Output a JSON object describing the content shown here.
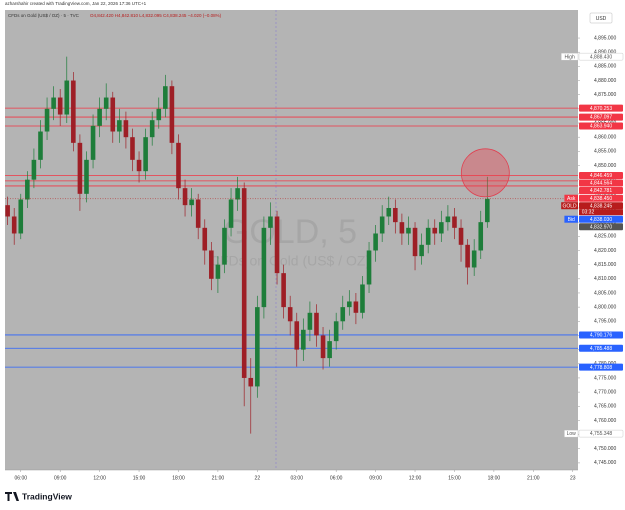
{
  "header": {
    "credit": "azharshahir created with TradingView.com, Jan 22, 2026 17:36 UTC+1",
    "symbol": "CFDs on Gold (US$ / OZ) · 5 · TVC",
    "ohlc": "O4,842.420 H4,842.810 L4,832.095 C4,838.245 −4.020 (−0.08%)",
    "currency": "USD",
    "watermark": "GOLD, 5",
    "watermark_sub": "CFDs on Gold (US$ / OZ)",
    "logo": "TradingView"
  },
  "chart_data": {
    "type": "candlestick",
    "grid": false,
    "up_color": "#1e7d3a",
    "down_color": "#9e1f26",
    "x": [
      5,
      5.5,
      6,
      6.5,
      7,
      7.5,
      8,
      8.5,
      9,
      9.5,
      10,
      10.5,
      11,
      11.5,
      12,
      12.5,
      13,
      13.5,
      14,
      14.5,
      15,
      15.5,
      16,
      16.5,
      17,
      17.5,
      18,
      18.5,
      19,
      19.5,
      20,
      20.5,
      21,
      21.5,
      22,
      22.5,
      23,
      23.5,
      24,
      24.5,
      25,
      25.5,
      26,
      26.5,
      27,
      27.5,
      28,
      28.5,
      29,
      29.5,
      30,
      30.5,
      31,
      31.5,
      32,
      32.5,
      33,
      33.5,
      34,
      34.5,
      35,
      35.5,
      36,
      36.5,
      37,
      37.5,
      38,
      38.5,
      39,
      39.5,
      40,
      40.5,
      41,
      41.5
    ],
    "open": [
      4836,
      4832,
      4826,
      4838,
      4845,
      4852,
      4862,
      4870,
      4874,
      4868,
      4880,
      4858,
      4840,
      4852,
      4864,
      4870,
      4874,
      4862,
      4866,
      4860,
      4852,
      4848,
      4860,
      4866,
      4870,
      4878,
      4858,
      4842,
      4836,
      4838,
      4828,
      4820,
      4810,
      4815,
      4828,
      4838,
      4842,
      4775,
      4772,
      4800,
      4828,
      4832,
      4812,
      4800,
      4795,
      4785,
      4792,
      4798,
      4790,
      4782,
      4788,
      4795,
      4800,
      4802,
      4798,
      4808,
      4820,
      4826,
      4832,
      4835,
      4830,
      4826,
      4828,
      4818,
      4822,
      4828,
      4826,
      4830,
      4832,
      4828,
      4822,
      4814,
      4820,
      4830
    ],
    "high": [
      4839,
      4835,
      4840,
      4848,
      4856,
      4866,
      4874,
      4878,
      4877,
      4888.43,
      4883,
      4861,
      4855,
      4868,
      4874,
      4879,
      4876,
      4870,
      4869,
      4863,
      4855,
      4863,
      4869,
      4874,
      4882,
      4880,
      4861,
      4845,
      4842,
      4840,
      4831,
      4823,
      4818,
      4831,
      4842,
      4846,
      4844,
      4782,
      4804,
      4832,
      4837,
      4834,
      4815,
      4804,
      4798,
      4796,
      4802,
      4801,
      4793,
      4792,
      4798,
      4804,
      4806,
      4805,
      4811,
      4823,
      4829,
      4836,
      4839,
      4838,
      4833,
      4832,
      4830,
      4826,
      4831,
      4831,
      4834,
      4836,
      4835,
      4831,
      4824,
      4824,
      4834,
      4846
    ],
    "low": [
      4829,
      4822,
      4824,
      4835,
      4842,
      4849,
      4859,
      4866,
      4864,
      4865,
      4855,
      4834,
      4837,
      4849,
      4860,
      4866,
      4858,
      4858,
      4856,
      4848,
      4844,
      4845,
      4857,
      4863,
      4867,
      4854,
      4838,
      4832,
      4832,
      4824,
      4815,
      4806,
      4805,
      4812,
      4825,
      4834,
      4765,
      4755.348,
      4768,
      4796,
      4822,
      4808,
      4796,
      4790,
      4779,
      4781,
      4788,
      4786,
      4778,
      4779,
      4785,
      4792,
      4797,
      4794,
      4796,
      4805,
      4816,
      4823,
      4829,
      4826,
      4822,
      4822,
      4813,
      4815,
      4819,
      4822,
      4823,
      4827,
      4824,
      4816,
      4808,
      4811,
      4817,
      4828
    ],
    "close": [
      4832,
      4826,
      4838,
      4845,
      4852,
      4862,
      4870,
      4874,
      4868,
      4880,
      4858,
      4840,
      4852,
      4864,
      4870,
      4874,
      4862,
      4866,
      4860,
      4852,
      4848,
      4860,
      4866,
      4870,
      4878,
      4858,
      4842,
      4836,
      4838,
      4828,
      4820,
      4810,
      4815,
      4828,
      4838,
      4842,
      4775,
      4772,
      4800,
      4828,
      4832,
      4812,
      4800,
      4795,
      4785,
      4792,
      4798,
      4790,
      4782,
      4788,
      4795,
      4800,
      4802,
      4798,
      4808,
      4820,
      4826,
      4832,
      4835,
      4830,
      4826,
      4828,
      4818,
      4822,
      4828,
      4826,
      4830,
      4832,
      4828,
      4822,
      4814,
      4820,
      4830,
      4838.245
    ],
    "xlim": [
      4.8,
      48.4
    ],
    "xticks": [
      {
        "value": 6,
        "label": "06:00"
      },
      {
        "value": 9,
        "label": "09:00"
      },
      {
        "value": 12,
        "label": "12:00"
      },
      {
        "value": 15,
        "label": "15:00"
      },
      {
        "value": 18,
        "label": "18:00"
      },
      {
        "value": 21,
        "label": "21:00"
      },
      {
        "value": 24,
        "label": "22"
      },
      {
        "value": 27,
        "label": "03:00"
      },
      {
        "value": 30,
        "label": "06:00"
      },
      {
        "value": 33,
        "label": "09:00"
      },
      {
        "value": 36,
        "label": "12:00"
      },
      {
        "value": 39,
        "label": "15:00"
      },
      {
        "value": 42,
        "label": "18:00"
      },
      {
        "value": 45,
        "label": "21:00"
      },
      {
        "value": 48,
        "label": "23"
      }
    ],
    "ylim": [
      4742.5,
      4904.9
    ],
    "yticks": [
      {
        "value": 4745,
        "label": "4,745.000"
      },
      {
        "value": 4750,
        "label": "4,750.000"
      },
      {
        "value": 4755,
        "label": "4,755.000"
      },
      {
        "value": 4760,
        "label": "4,760.000"
      },
      {
        "value": 4765,
        "label": "4,765.000"
      },
      {
        "value": 4770,
        "label": "4,770.000"
      },
      {
        "value": 4775,
        "label": "4,775.000"
      },
      {
        "value": 4780,
        "label": "4,780.000"
      },
      {
        "value": 4785,
        "label": "4,785.000"
      },
      {
        "value": 4790,
        "label": "4,790.000"
      },
      {
        "value": 4795,
        "label": "4,795.000"
      },
      {
        "value": 4800,
        "label": "4,800.000"
      },
      {
        "value": 4805,
        "label": "4,805.000"
      },
      {
        "value": 4810,
        "label": "4,810.000"
      },
      {
        "value": 4815,
        "label": "4,815.000"
      },
      {
        "value": 4820,
        "label": "4,820.000"
      },
      {
        "value": 4825,
        "label": "4,825.000"
      },
      {
        "value": 4830,
        "label": "4,830.000"
      },
      {
        "value": 4835,
        "label": "4,835.000"
      },
      {
        "value": 4840,
        "label": "4,840.000"
      },
      {
        "value": 4845,
        "label": "4,845.000"
      },
      {
        "value": 4850,
        "label": "4,850.000"
      },
      {
        "value": 4855,
        "label": "4,855.000"
      },
      {
        "value": 4860,
        "label": "4,860.000"
      },
      {
        "value": 4865,
        "label": "4,865.000"
      },
      {
        "value": 4870,
        "label": "4,870.000"
      },
      {
        "value": 4875,
        "label": "4,875.000"
      },
      {
        "value": 4880,
        "label": "4,880.000"
      },
      {
        "value": 4885,
        "label": "4,885.000"
      },
      {
        "value": 4890,
        "label": "4,890.000"
      },
      {
        "value": 4895,
        "label": "4,895.000"
      }
    ],
    "lines": [
      {
        "value": 4870.253,
        "color": "#f23645"
      },
      {
        "value": 4867.097,
        "color": "#f23645"
      },
      {
        "value": 4863.94,
        "color": "#f23645"
      },
      {
        "value": 4846.459,
        "color": "#f23645"
      },
      {
        "value": 4844.564,
        "color": "#f23645"
      },
      {
        "value": 4842.781,
        "color": "#f23645"
      },
      {
        "value": 4790.176,
        "color": "#2962ff"
      },
      {
        "value": 4785.488,
        "color": "#2962ff"
      },
      {
        "value": 4778.808,
        "color": "#2962ff"
      }
    ],
    "tags": [
      {
        "name": "High",
        "value": 4888.43,
        "label": "4,888.430",
        "color": "#ffffff"
      },
      {
        "value": 4870.253,
        "label": "4,870.253",
        "color": "#f23645"
      },
      {
        "value": 4867.097,
        "label": "4,867.097",
        "color": "#f23645"
      },
      {
        "value": 4863.94,
        "label": "4,863.940",
        "color": "#f23645"
      },
      {
        "value": 4846.459,
        "label": "4,846.459",
        "color": "#f23645"
      },
      {
        "value": 4844.564,
        "label": "4,844.564",
        "color": "#f23645"
      },
      {
        "value": 4842.781,
        "label": "4,842.781",
        "color": "#f23645"
      },
      {
        "name": "Ask",
        "value": 4838.45,
        "label": "4,838.450",
        "color": "#f23645"
      },
      {
        "name": "GOLD",
        "value": 4838.245,
        "label": "4,838.245",
        "countdown": "03:32",
        "color": "#b71c1c"
      },
      {
        "name": "Bid",
        "value": 4838.03,
        "label": "4,838.030",
        "color": "#2962ff"
      },
      {
        "value": 4832.97,
        "label": "4,832.970",
        "color": "#555555"
      },
      {
        "value": 4790.176,
        "label": "4,790.176",
        "color": "#2962ff"
      },
      {
        "value": 4785.488,
        "label": "4,785.488",
        "color": "#2962ff"
      },
      {
        "value": 4778.808,
        "label": "4,778.808",
        "color": "#2962ff"
      },
      {
        "name": "Low",
        "value": 4755.348,
        "label": "4,755.348",
        "color": "#ffffff"
      }
    ]
  }
}
